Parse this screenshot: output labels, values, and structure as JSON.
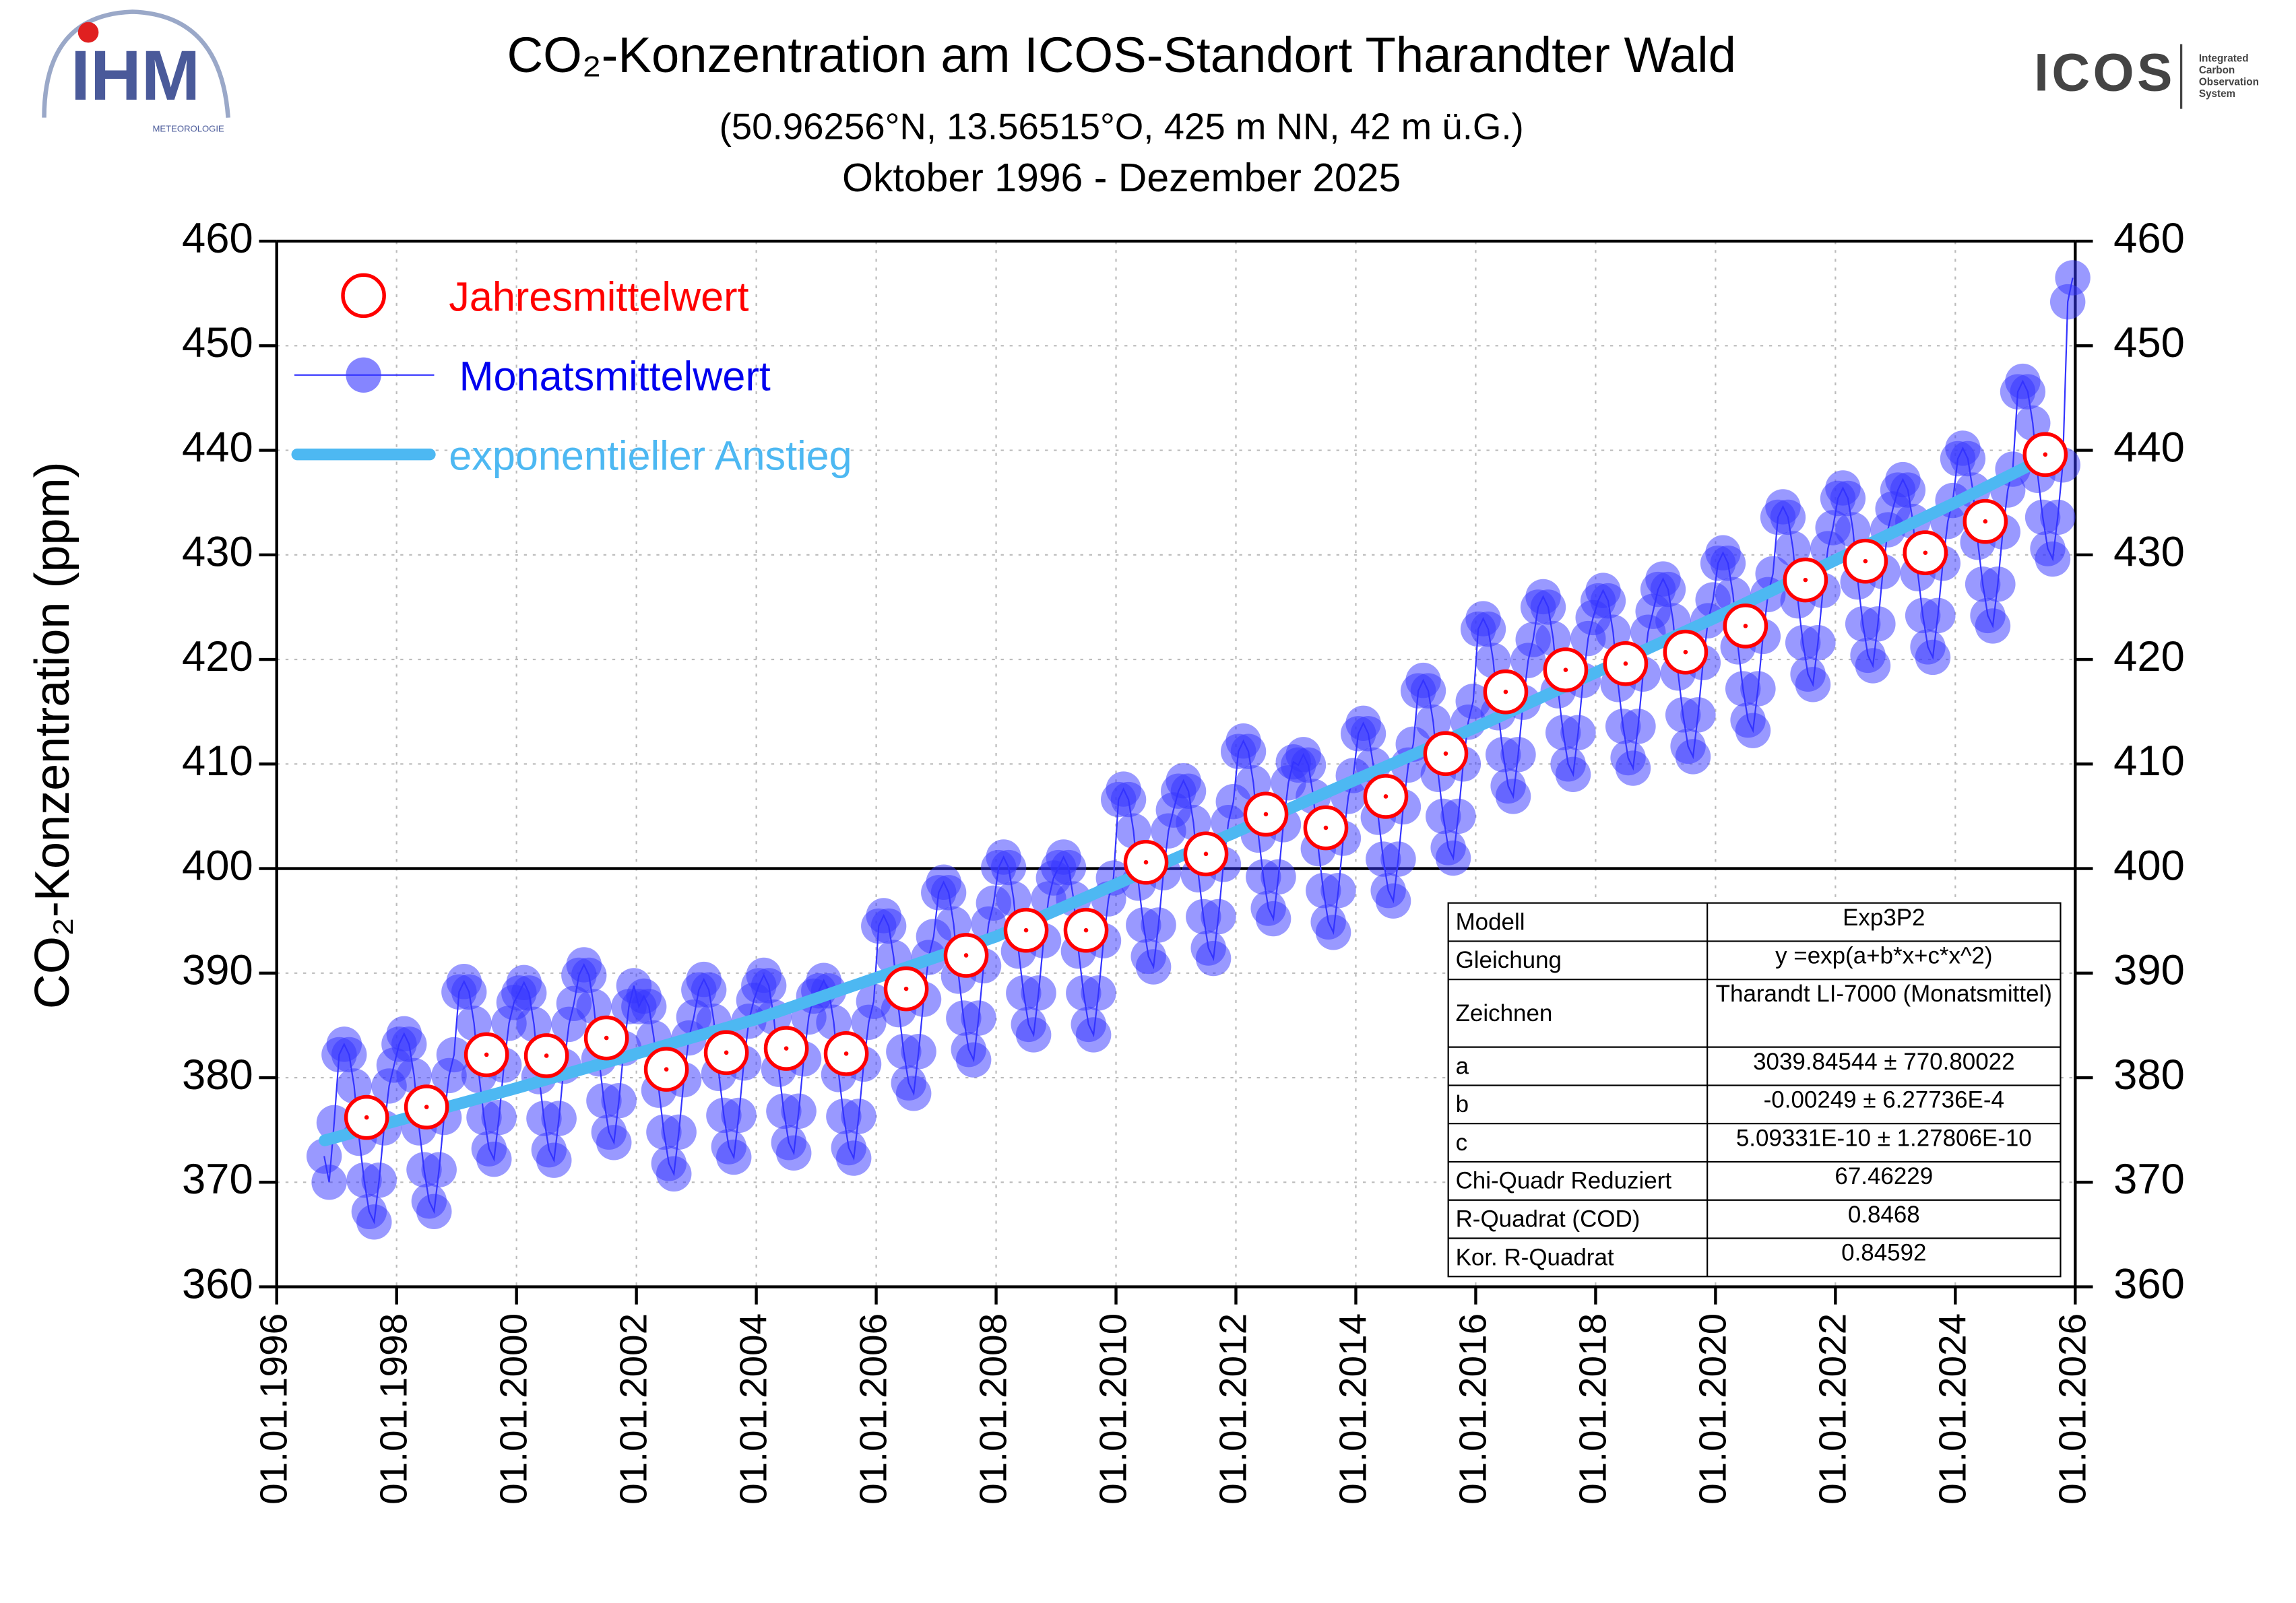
{
  "logos": {
    "left": "IHM",
    "left_sub": "METEOROLOGIE",
    "right": "ICOS",
    "right_sub": [
      "Integrated",
      "Carbon",
      "Observation",
      "System"
    ]
  },
  "chart_data": {
    "type": "scatter-line",
    "title": "CO₂-Konzentration am ICOS-Standort Tharandter Wald",
    "subtitle": [
      "(50.96256°N, 13.56515°O, 425 m NN, 42 m ü.G.)",
      "Oktober 1996 - Dezember 2025"
    ],
    "y_label": "CO₂-Konzentration (ppm)",
    "xlim": [
      1996,
      2026
    ],
    "xticks": [
      {
        "value": 1996,
        "label": "01.01.1996"
      },
      {
        "value": 1998,
        "label": "01.01.1998"
      },
      {
        "value": 2000,
        "label": "01.01.2000"
      },
      {
        "value": 2002,
        "label": "01.01.2002"
      },
      {
        "value": 2004,
        "label": "01.01.2004"
      },
      {
        "value": 2006,
        "label": "01.01.2006"
      },
      {
        "value": 2008,
        "label": "01.01.2008"
      },
      {
        "value": 2010,
        "label": "01.01.2010"
      },
      {
        "value": 2012,
        "label": "01.01.2012"
      },
      {
        "value": 2014,
        "label": "01.01.2014"
      },
      {
        "value": 2016,
        "label": "01.01.2016"
      },
      {
        "value": 2018,
        "label": "01.01.2018"
      },
      {
        "value": 2020,
        "label": "01.01.2020"
      },
      {
        "value": 2022,
        "label": "01.01.2022"
      },
      {
        "value": 2024,
        "label": "01.01.2024"
      },
      {
        "value": 2026,
        "label": "01.01.2026"
      }
    ],
    "ylim": [
      360,
      460
    ],
    "yticks": [
      360,
      370,
      380,
      390,
      400,
      410,
      420,
      430,
      440,
      450,
      460
    ],
    "y2lim": [
      360,
      460
    ],
    "y2ticks": [
      360,
      370,
      380,
      390,
      400,
      410,
      420,
      430,
      440,
      450,
      460
    ],
    "reference_line": 400,
    "grid": true,
    "legend": "upper left",
    "series": [
      {
        "name": "Jahresmittelwert",
        "color": "#ff0000",
        "marker": "open-circle",
        "x": [
          1997.5,
          1998.5,
          1999.5,
          2000.5,
          2001.5,
          2002.5,
          2003.5,
          2004.5,
          2005.5,
          2006.5,
          2007.5,
          2008.5,
          2009.5,
          2010.5,
          2011.5,
          2012.5,
          2013.5,
          2014.5,
          2015.5,
          2016.5,
          2017.5,
          2018.5,
          2019.5,
          2020.5,
          2021.5,
          2022.5,
          2023.5,
          2024.5,
          2025.5
        ],
        "values": [
          376.2,
          377.2,
          382.2,
          382.1,
          383.8,
          380.8,
          382.4,
          382.8,
          382.3,
          388.5,
          391.7,
          394.1,
          394.1,
          400.6,
          401.4,
          405.2,
          403.9,
          406.9,
          411.0,
          416.9,
          419.0,
          419.6,
          420.7,
          423.2,
          427.6,
          429.4,
          430.2,
          433.2,
          439.6
        ]
      },
      {
        "name": "Monatsmittelwert",
        "color": "#3333ff",
        "marker": "circle",
        "x": [
          "1996-10",
          "1996-11",
          "1996-12",
          "1997-01",
          "1997-02",
          "1997-03",
          "1997-04",
          "1997-05",
          "1997-06",
          "1997-07",
          "1997-08",
          "1997-09",
          "1997-10",
          "1997-11",
          "1997-12",
          "1998-01",
          "1998-02",
          "1998-03",
          "1998-04",
          "1998-05",
          "1998-06",
          "1998-07",
          "1998-08",
          "1998-09",
          "1998-10",
          "1998-11",
          "1998-12",
          "1999-01",
          "1999-02",
          "1999-03",
          "1999-04",
          "1999-05",
          "1999-06",
          "1999-07",
          "1999-08",
          "1999-09",
          "1999-10",
          "1999-11",
          "1999-12",
          "2000-01",
          "2000-02",
          "2000-03",
          "2000-04",
          "2000-05",
          "2000-06",
          "2000-07",
          "2000-08",
          "2000-09",
          "2000-10",
          "2000-11",
          "2000-12",
          "2001-01",
          "2001-02",
          "2001-03",
          "2001-04",
          "2001-05",
          "2001-06",
          "2001-07",
          "2001-08",
          "2001-09",
          "2001-10",
          "2001-11",
          "2001-12",
          "2002-01",
          "2002-02",
          "2002-03",
          "2002-04",
          "2002-05",
          "2002-06",
          "2002-07",
          "2002-08",
          "2002-09",
          "2002-10",
          "2002-11",
          "2002-12",
          "2003-01",
          "2003-02",
          "2003-03",
          "2003-04",
          "2003-05",
          "2003-06",
          "2003-07",
          "2003-08",
          "2003-09",
          "2003-10",
          "2003-11",
          "2003-12",
          "2004-01",
          "2004-02",
          "2004-03",
          "2004-04",
          "2004-05",
          "2004-06",
          "2004-07",
          "2004-08",
          "2004-09",
          "2004-10",
          "2004-11",
          "2004-12",
          "2005-01",
          "2005-02",
          "2005-03",
          "2005-04",
          "2005-05",
          "2005-06",
          "2005-07",
          "2005-08",
          "2005-09",
          "2005-10",
          "2005-11",
          "2005-12",
          "2006-01",
          "2006-02",
          "2006-03",
          "2006-04",
          "2006-05",
          "2006-06",
          "2006-07",
          "2006-08",
          "2006-09",
          "2006-10",
          "2006-11",
          "2006-12",
          "2007-01",
          "2007-02",
          "2007-03",
          "2007-04",
          "2007-05",
          "2007-06",
          "2007-07",
          "2007-08",
          "2007-09",
          "2007-10",
          "2007-11",
          "2007-12",
          "2008-01",
          "2008-02",
          "2008-03",
          "2008-04",
          "2008-05",
          "2008-06",
          "2008-07",
          "2008-08",
          "2008-09",
          "2008-10",
          "2008-11",
          "2008-12",
          "2009-01",
          "2009-02",
          "2009-03",
          "2009-04",
          "2009-05",
          "2009-06",
          "2009-07",
          "2009-08",
          "2009-09",
          "2009-10",
          "2009-11",
          "2009-12",
          "2010-01",
          "2010-02",
          "2010-03",
          "2010-04",
          "2010-05",
          "2010-06",
          "2010-07",
          "2010-08",
          "2010-09",
          "2010-10",
          "2010-11",
          "2010-12",
          "2011-01",
          "2011-02",
          "2011-03",
          "2011-04",
          "2011-05",
          "2011-06",
          "2011-07",
          "2011-08",
          "2011-09",
          "2011-10",
          "2011-11",
          "2011-12",
          "2012-01",
          "2012-02",
          "2012-03",
          "2012-04",
          "2012-05",
          "2012-06",
          "2012-07",
          "2012-08",
          "2012-09",
          "2012-10",
          "2012-11",
          "2012-12",
          "2013-01",
          "2013-02",
          "2013-03",
          "2013-04",
          "2013-05",
          "2013-06",
          "2013-07",
          "2013-08",
          "2013-09",
          "2013-10",
          "2013-11",
          "2013-12",
          "2014-01",
          "2014-02",
          "2014-03",
          "2014-04",
          "2014-05",
          "2014-06",
          "2014-07",
          "2014-08",
          "2014-09",
          "2014-10",
          "2014-11",
          "2014-12",
          "2015-01",
          "2015-02",
          "2015-03",
          "2015-04",
          "2015-05",
          "2015-06",
          "2015-07",
          "2015-08",
          "2015-09",
          "2015-10",
          "2015-11",
          "2015-12",
          "2016-01",
          "2016-02",
          "2016-03",
          "2016-04",
          "2016-05",
          "2016-06",
          "2016-07",
          "2016-08",
          "2016-09",
          "2016-10",
          "2016-11",
          "2016-12",
          "2017-01",
          "2017-02",
          "2017-03",
          "2017-04",
          "2017-05",
          "2017-06",
          "2017-07",
          "2017-08",
          "2017-09",
          "2017-10",
          "2017-11",
          "2017-12",
          "2018-01",
          "2018-02",
          "2018-03",
          "2018-04",
          "2018-05",
          "2018-06",
          "2018-07",
          "2018-08",
          "2018-09",
          "2018-10",
          "2018-11",
          "2018-12",
          "2019-01",
          "2019-02",
          "2019-03",
          "2019-04",
          "2019-05",
          "2019-06",
          "2019-07",
          "2019-08",
          "2019-09",
          "2019-10",
          "2019-11",
          "2019-12",
          "2020-01",
          "2020-02",
          "2020-03",
          "2020-04",
          "2020-05",
          "2020-06",
          "2020-07",
          "2020-08",
          "2020-09",
          "2020-10",
          "2020-11",
          "2020-12",
          "2021-01",
          "2021-02",
          "2021-03",
          "2021-04",
          "2021-05",
          "2021-06",
          "2021-07",
          "2021-08",
          "2021-09",
          "2021-10",
          "2021-11",
          "2021-12",
          "2022-01",
          "2022-02",
          "2022-03",
          "2022-04",
          "2022-05",
          "2022-06",
          "2022-07",
          "2022-08",
          "2022-09",
          "2022-10",
          "2022-11",
          "2022-12",
          "2023-01",
          "2023-02",
          "2023-03",
          "2023-04",
          "2023-05",
          "2023-06",
          "2023-07",
          "2023-08",
          "2023-09",
          "2023-10",
          "2023-11",
          "2023-12",
          "2024-01",
          "2024-02",
          "2024-03",
          "2024-04",
          "2024-05",
          "2024-06",
          "2024-07",
          "2024-08",
          "2024-09",
          "2024-10",
          "2024-11",
          "2024-12",
          "2025-01",
          "2025-02",
          "2025-03",
          "2025-04",
          "2025-05",
          "2025-06",
          "2025-07",
          "2025-08",
          "2025-09",
          "2025-10",
          "2025-11",
          "2025-12"
        ],
        "values": [
          372.5,
          370,
          375.7,
          382.2,
          383.2,
          382.2,
          379.2,
          374.2,
          370.2,
          367.2,
          366.2,
          370.2,
          375.2,
          379.2,
          381.2,
          383.2,
          384.2,
          383.2,
          380.2,
          375.2,
          371.2,
          368.2,
          367.2,
          371.2,
          376.2,
          380.2,
          382.2,
          388.2,
          389.2,
          388.2,
          385.2,
          380.2,
          376.2,
          373.2,
          372.2,
          376.2,
          381.2,
          385.2,
          387.2,
          388.1,
          389.1,
          388.1,
          385.1,
          380.1,
          376.1,
          373.1,
          372.1,
          376.1,
          381.1,
          385.1,
          387.1,
          389.8,
          390.8,
          389.8,
          386.8,
          381.8,
          377.8,
          374.8,
          373.8,
          377.8,
          382.8,
          386.8,
          388.8,
          386.8,
          387.8,
          386.8,
          383.8,
          378.8,
          374.8,
          371.8,
          370.8,
          374.8,
          379.8,
          383.8,
          385.8,
          388.4,
          389.4,
          388.4,
          385.4,
          380.4,
          376.4,
          373.4,
          372.4,
          376.4,
          381.4,
          385.4,
          387.4,
          388.8,
          389.8,
          388.8,
          385.8,
          380.8,
          376.8,
          373.8,
          372.8,
          376.8,
          381.8,
          385.8,
          387.8,
          388.3,
          389.3,
          388.3,
          385.3,
          380.3,
          376.3,
          373.3,
          372.3,
          376.3,
          381.3,
          385.3,
          387.3,
          394.5,
          395.5,
          394.5,
          391.5,
          386.5,
          382.5,
          379.5,
          378.5,
          382.5,
          387.5,
          391.5,
          393.5,
          397.7,
          398.7,
          397.7,
          394.7,
          389.7,
          385.7,
          382.7,
          381.7,
          385.7,
          390.7,
          394.7,
          396.7,
          400.1,
          401.1,
          400.1,
          397.1,
          392.1,
          388.1,
          385.1,
          384.1,
          388.1,
          393.1,
          397.1,
          399.1,
          400.1,
          401.1,
          400.1,
          397.1,
          392.1,
          388.1,
          385.1,
          384.1,
          388.1,
          393.1,
          397.1,
          399.1,
          406.6,
          407.6,
          406.6,
          403.6,
          398.6,
          394.6,
          391.6,
          390.6,
          394.6,
          399.6,
          403.6,
          405.6,
          407.4,
          408.4,
          407.4,
          404.4,
          399.4,
          395.4,
          392.4,
          391.4,
          395.4,
          400.4,
          404.4,
          406.4,
          411.2,
          412.2,
          411.2,
          408.2,
          403.2,
          399.2,
          396.2,
          395.2,
          399.2,
          404.2,
          408.2,
          410.2,
          409.9,
          410.9,
          409.9,
          406.9,
          401.9,
          397.9,
          394.9,
          393.9,
          397.9,
          402.9,
          406.9,
          408.9,
          412.9,
          413.9,
          412.9,
          409.9,
          404.9,
          400.9,
          397.9,
          396.9,
          400.9,
          405.9,
          409.9,
          411.9,
          417,
          418,
          417,
          414,
          409,
          405,
          402,
          401,
          405,
          410,
          414,
          416,
          422.9,
          423.9,
          422.9,
          419.9,
          414.9,
          410.9,
          407.9,
          406.9,
          410.9,
          415.9,
          419.9,
          421.9,
          425,
          426,
          425,
          422,
          417,
          413,
          410,
          409,
          413,
          418,
          422,
          424,
          425.6,
          426.6,
          425.6,
          422.6,
          417.6,
          413.6,
          410.6,
          409.6,
          413.6,
          418.6,
          422.6,
          424.6,
          426.7,
          427.7,
          426.7,
          423.7,
          418.7,
          414.7,
          411.7,
          410.7,
          414.7,
          419.7,
          423.7,
          425.7,
          429.2,
          430.2,
          429.2,
          426.2,
          421.2,
          417.2,
          414.2,
          413.2,
          417.2,
          422.2,
          426.2,
          428.2,
          433.6,
          434.6,
          433.6,
          430.6,
          425.6,
          421.6,
          418.6,
          417.6,
          421.6,
          426.6,
          430.6,
          432.6,
          435.4,
          436.4,
          435.4,
          432.4,
          427.4,
          423.4,
          420.4,
          419.4,
          423.4,
          428.4,
          432.4,
          434.4,
          436.2,
          437.2,
          436.2,
          433.2,
          428.2,
          424.2,
          421.2,
          420.2,
          424.2,
          429.2,
          433.2,
          435.2,
          439.2,
          440.2,
          439.2,
          436.2,
          431.2,
          427.2,
          424.2,
          423.2,
          427.2,
          432.2,
          436.2,
          438.2,
          445.6,
          446.6,
          445.6,
          442.6,
          437.6,
          433.6,
          430.6,
          429.6,
          433.6,
          438.6,
          454.2,
          456.5
        ]
      },
      {
        "name": "exponentieller Anstieg",
        "color": "#4db8f2",
        "marker": "none",
        "x": [
          1996.8,
          2000,
          2004,
          2008,
          2012,
          2016,
          2020,
          2024,
          2025.6
        ],
        "values": [
          374.0,
          379.0,
          385.6,
          393.5,
          403.5,
          413.5,
          424.0,
          435.0,
          439.6
        ]
      }
    ],
    "fit_table": [
      [
        "Modell",
        "Exp3P2"
      ],
      [
        "Gleichung",
        "y =exp(a+b*x+c*x^2)"
      ],
      [
        "Zeichnen",
        "Tharandt LI-7000 (Monatsmittel)"
      ],
      [
        "a",
        "3039.84544 ± 770.80022"
      ],
      [
        "b",
        "-0.00249 ± 6.27736E-4"
      ],
      [
        "c",
        "5.09331E-10 ± 1.27806E-10"
      ],
      [
        "Chi-Quadr Reduziert",
        "67.46229"
      ],
      [
        "R-Quadrat (COD)",
        "0.8468"
      ],
      [
        "Kor. R-Quadrat",
        "0.84592"
      ]
    ]
  }
}
